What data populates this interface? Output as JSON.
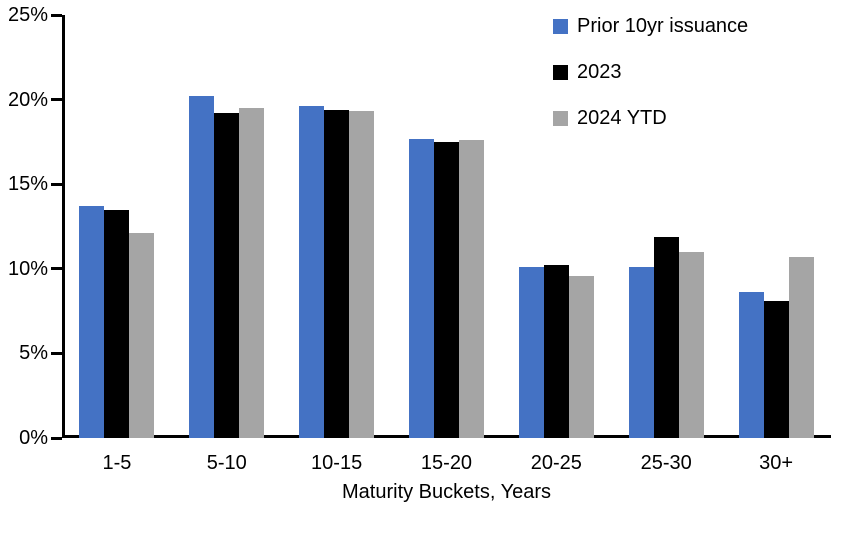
{
  "chart_data": {
    "type": "bar",
    "title": "",
    "categories": [
      "1-5",
      "5-10",
      "10-15",
      "15-20",
      "20-25",
      "25-30",
      "30+"
    ],
    "series": [
      {
        "name": "Prior 10yr issuance",
        "color": "#4472C4",
        "values": [
          13.7,
          20.2,
          19.6,
          17.7,
          10.1,
          10.1,
          8.6
        ]
      },
      {
        "name": "2023",
        "color": "#000000",
        "values": [
          13.5,
          19.2,
          19.4,
          17.5,
          10.2,
          11.9,
          8.1
        ]
      },
      {
        "name": "2024 YTD",
        "color": "#A5A5A5",
        "values": [
          12.1,
          19.5,
          19.3,
          17.6,
          9.6,
          11.0,
          10.7
        ]
      }
    ],
    "xlabel": "Maturity Buckets, Years",
    "ylabel": "",
    "ylim": [
      0,
      25
    ],
    "ytick_step": 5,
    "ytick_labels": [
      "0%",
      "5%",
      "10%",
      "15%",
      "20%",
      "25%"
    ],
    "grid": false,
    "legend_position": "top-right",
    "background": "#ffffff"
  }
}
